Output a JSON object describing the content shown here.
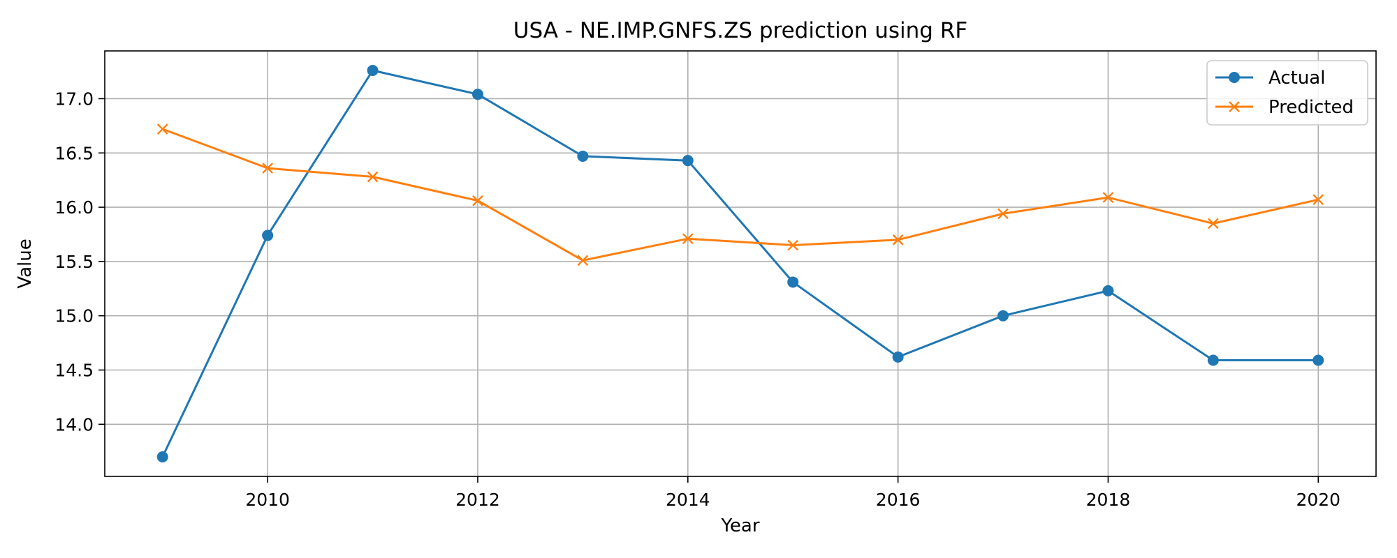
{
  "chart_data": {
    "type": "line",
    "title": "USA - NE.IMP.GNFS.ZS prediction using RF",
    "xlabel": "Year",
    "ylabel": "Value",
    "x": [
      2009,
      2010,
      2011,
      2012,
      2013,
      2014,
      2015,
      2016,
      2017,
      2018,
      2019,
      2020
    ],
    "xlim": [
      2008.45,
      2020.55
    ],
    "ylim": [
      13.52,
      17.44
    ],
    "x_ticks": [
      2010,
      2012,
      2014,
      2016,
      2018,
      2020
    ],
    "y_ticks": [
      14.0,
      14.5,
      15.0,
      15.5,
      16.0,
      16.5,
      17.0
    ],
    "grid": true,
    "legend_position": "top-right",
    "series": [
      {
        "name": "Actual",
        "marker": "circle",
        "color": "#1f77b4",
        "values": [
          13.7,
          15.74,
          17.26,
          17.04,
          16.47,
          16.43,
          15.31,
          14.62,
          15.0,
          15.23,
          14.59,
          14.59
        ]
      },
      {
        "name": "Predicted",
        "marker": "x",
        "color": "#ff7f0e",
        "values": [
          16.72,
          16.36,
          16.28,
          16.06,
          15.51,
          15.71,
          15.65,
          15.7,
          15.94,
          16.09,
          15.85,
          16.07
        ]
      }
    ]
  }
}
